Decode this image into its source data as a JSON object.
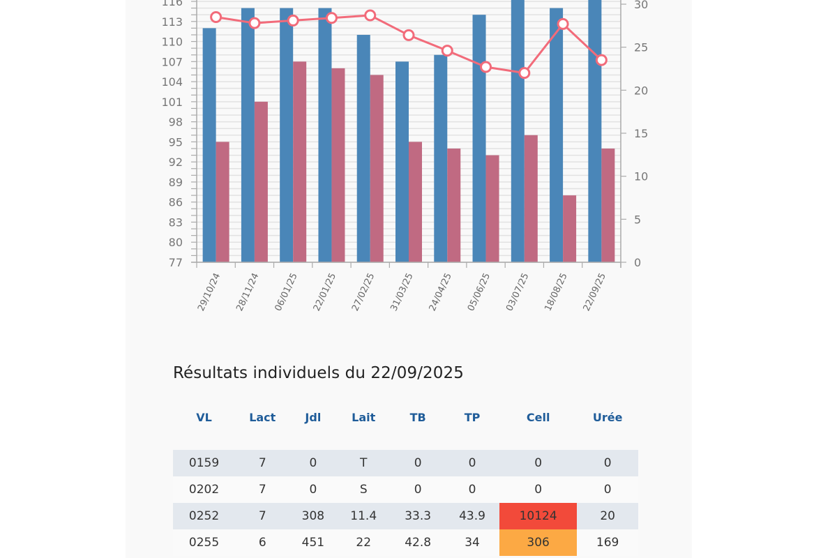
{
  "colors": {
    "bar_blue": "#4a86b8",
    "bar_pink": "#c06a82",
    "line": "#f26b7a",
    "header_blue": "#1f5c99",
    "cell_red": "#f24a3a",
    "cell_orange": "#fca944",
    "row_alt": "#e3e8ee"
  },
  "chart_data": {
    "type": "bar",
    "title": "",
    "xlabel": "",
    "ylabel": "",
    "categories": [
      "29/10/24",
      "28/11/24",
      "06/01/25",
      "22/01/25",
      "27/02/25",
      "31/03/25",
      "24/04/25",
      "05/06/25",
      "03/07/25",
      "18/08/25",
      "22/09/25"
    ],
    "ylim": [
      77,
      116
    ],
    "y_ticks": [
      "77",
      "80",
      "83",
      "86",
      "89",
      "92",
      "95",
      "98",
      "101",
      "104",
      "107",
      "110",
      "113",
      "116"
    ],
    "y2lim": [
      0,
      30
    ],
    "y2_ticks": [
      "0",
      "5",
      "10",
      "15",
      "20",
      "25",
      "30"
    ],
    "grid": true,
    "series": [
      {
        "name": "blue-bars",
        "type": "bar",
        "axis": "left",
        "values": [
          112,
          115,
          115,
          115,
          111,
          107,
          108,
          114,
          117,
          115,
          117
        ]
      },
      {
        "name": "pink-bars",
        "type": "bar",
        "axis": "left",
        "values": [
          95,
          101,
          107,
          106,
          105,
          95,
          94,
          93,
          96,
          87,
          94
        ]
      },
      {
        "name": "line",
        "type": "line",
        "axis": "right",
        "values": [
          28.5,
          27.8,
          28.1,
          28.4,
          28.7,
          26.4,
          24.6,
          22.7,
          22.0,
          27.7,
          23.5
        ]
      }
    ]
  },
  "results": {
    "title": "Résultats individuels du 22/09/2025",
    "columns": [
      "VL",
      "Lact",
      "Jdl",
      "Lait",
      "TB",
      "TP",
      "Cell",
      "Urée"
    ],
    "rows": [
      {
        "cells": [
          "0159",
          "7",
          "0",
          "T",
          "0",
          "0",
          "0",
          "0"
        ],
        "cell_status": ""
      },
      {
        "cells": [
          "0202",
          "7",
          "0",
          "S",
          "0",
          "0",
          "0",
          "0"
        ],
        "cell_status": ""
      },
      {
        "cells": [
          "0252",
          "7",
          "308",
          "11.4",
          "33.3",
          "43.9",
          "10124",
          "20"
        ],
        "cell_status": "red"
      },
      {
        "cells": [
          "0255",
          "6",
          "451",
          "22",
          "42.8",
          "34",
          "306",
          "169"
        ],
        "cell_status": "orange"
      }
    ]
  }
}
